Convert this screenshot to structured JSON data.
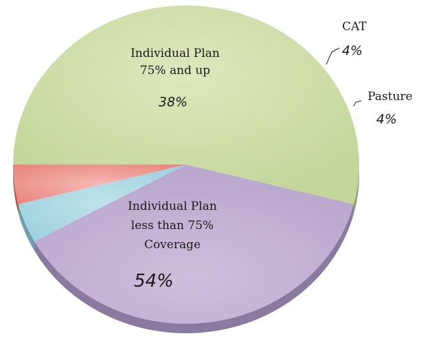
{
  "chart_data": {
    "type": "pie",
    "title": "",
    "slices": [
      {
        "label_lines": [
          "Individual Plan",
          "less than 75%",
          "Coverage"
        ],
        "value": 54,
        "value_label": "54%",
        "color": "#cbdba6",
        "side_color": "#8f9c68"
      },
      {
        "label_lines": [
          "Individual Plan",
          "75% and up"
        ],
        "value": 38,
        "value_label": "38%",
        "color": "#c3b2d3",
        "side_color": "#8a7aa0"
      },
      {
        "label_lines": [
          "CAT"
        ],
        "value": 4,
        "value_label": "4%",
        "color": "#a9d7e3",
        "side_color": "#6f9fae"
      },
      {
        "label_lines": [
          "Pasture"
        ],
        "value": 4,
        "value_label": "4%",
        "color": "#f29e98",
        "side_color": "#b05b56"
      }
    ]
  }
}
